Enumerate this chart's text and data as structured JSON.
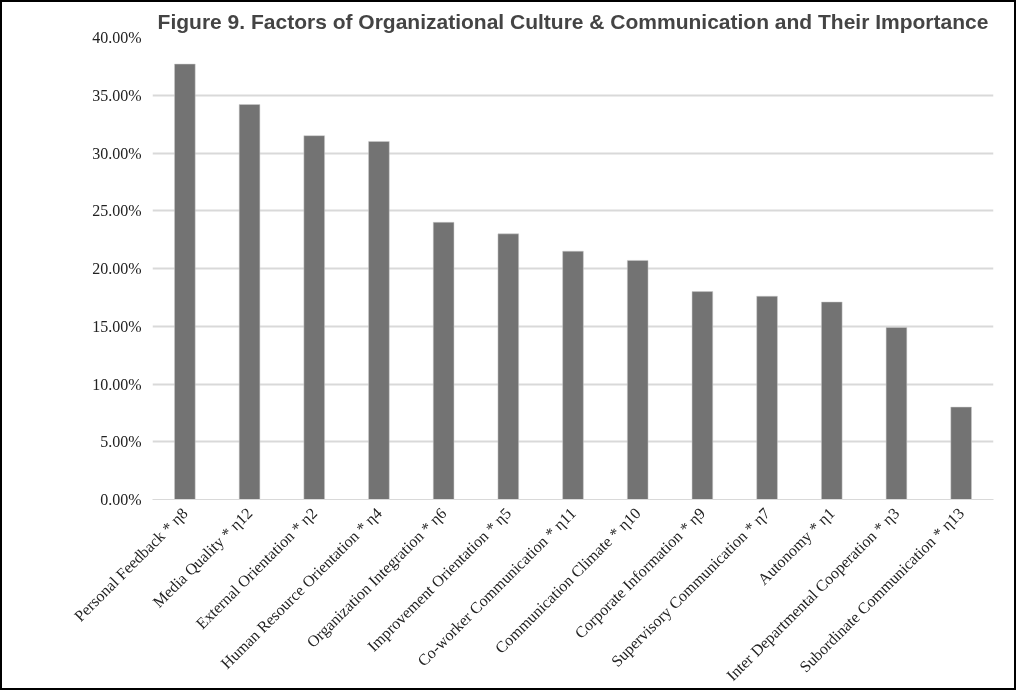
{
  "chart_data": {
    "type": "bar",
    "title": "Figure 9. Factors of Organizational Culture & Communication and Their Importance",
    "categories": [
      "Personal Feedback * η8",
      "Media Quality * η12",
      "External Orientation * η2",
      "Human Resource Orientation * η4",
      "Organization Integration * η6",
      "Improvement Orientation * η5",
      "Co-worker Communication * η11",
      "Communication Climate * η10",
      "Corporate Information * η9",
      "Supervisory Communication * η7",
      "Autonomy * η1",
      "Inter Departmental Cooperation * η3",
      "Subordinate Communication * η13"
    ],
    "values": [
      37.7,
      34.2,
      31.5,
      31.0,
      24.0,
      23.0,
      21.5,
      20.7,
      18.0,
      17.6,
      17.1,
      14.9,
      8.0
    ],
    "color": "#737373",
    "ylim": [
      0,
      40
    ],
    "yticks": [
      {
        "value": 0,
        "label": "0.00%"
      },
      {
        "value": 5,
        "label": "5.00%"
      },
      {
        "value": 10,
        "label": "10.00%"
      },
      {
        "value": 15,
        "label": "15.00%"
      },
      {
        "value": 20,
        "label": "20.00%"
      },
      {
        "value": 25,
        "label": "25.00%"
      },
      {
        "value": 30,
        "label": "30.00%"
      },
      {
        "value": 35,
        "label": "35.00%"
      },
      {
        "value": 40,
        "label": "40.00%"
      }
    ],
    "grid": "y"
  }
}
